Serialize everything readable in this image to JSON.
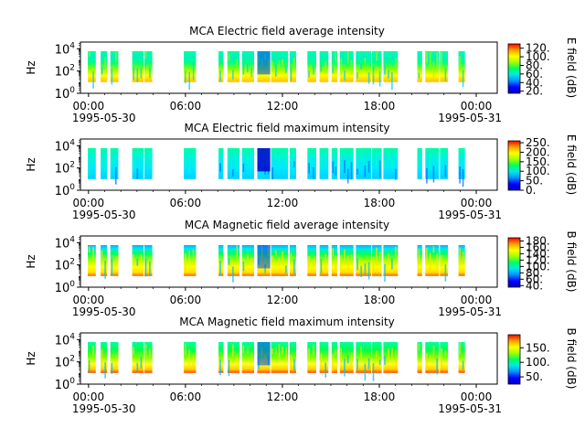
{
  "figure": {
    "date_start": "1995-05-30",
    "date_end": "1995-05-31"
  },
  "chart_data": [
    {
      "type": "heatmap",
      "title": "MCA  Electric field average intensity",
      "ylabel": "Hz",
      "colorbar_label": "E field (dB)",
      "x_unit": "hours",
      "xlim": [
        -0.5,
        25.3
      ],
      "x_ticks": [
        "00:00",
        "06:00",
        "12:00",
        "18:00",
        "00:00"
      ],
      "y_scale": "log",
      "y_ticks": [
        "10^0",
        "10^2",
        "10^4"
      ],
      "colorbar_range": [
        15,
        130
      ],
      "colorbar_ticks": [
        "20.",
        "40.",
        "60.",
        "80.",
        "100.",
        "120."
      ],
      "colormap": "rainbow",
      "data_intervals_hours": [
        [
          -0.05,
          0.45
        ],
        [
          0.75,
          1.15
        ],
        [
          1.35,
          1.85
        ],
        [
          2.7,
          3.4
        ],
        [
          3.45,
          3.95
        ],
        [
          5.9,
          6.65
        ],
        [
          8.05,
          8.35
        ],
        [
          8.6,
          9.35
        ],
        [
          9.5,
          10.25
        ],
        [
          10.45,
          11.25
        ],
        [
          11.3,
          12.35
        ],
        [
          12.45,
          12.85
        ],
        [
          13.55,
          14.1
        ],
        [
          14.3,
          14.85
        ],
        [
          15.05,
          15.4
        ],
        [
          15.55,
          16.4
        ],
        [
          16.55,
          17.5
        ],
        [
          17.55,
          18.15
        ],
        [
          18.25,
          19.15
        ],
        [
          20.35,
          20.65
        ],
        [
          20.85,
          21.7
        ],
        [
          21.75,
          22.25
        ],
        [
          22.9,
          23.3
        ]
      ]
    },
    {
      "type": "heatmap",
      "title": "MCA  Electric field maximum intensity",
      "ylabel": "Hz",
      "colorbar_label": "E field (dB)",
      "x_unit": "hours",
      "xlim": [
        -0.5,
        25.3
      ],
      "x_ticks": [
        "00:00",
        "06:00",
        "12:00",
        "18:00",
        "00:00"
      ],
      "y_scale": "log",
      "y_ticks": [
        "10^0",
        "10^2",
        "10^4"
      ],
      "colorbar_range": [
        0,
        260
      ],
      "colorbar_ticks": [
        "0.",
        "50.",
        "100.",
        "150.",
        "200.",
        "250."
      ],
      "colormap": "rainbow",
      "data_intervals_hours": [
        [
          -0.05,
          0.45
        ],
        [
          0.75,
          1.15
        ],
        [
          1.35,
          1.85
        ],
        [
          2.7,
          3.4
        ],
        [
          3.45,
          3.95
        ],
        [
          5.9,
          6.65
        ],
        [
          8.05,
          8.35
        ],
        [
          8.6,
          9.35
        ],
        [
          9.5,
          10.25
        ],
        [
          10.45,
          11.25
        ],
        [
          11.3,
          12.35
        ],
        [
          12.45,
          12.85
        ],
        [
          13.55,
          14.1
        ],
        [
          14.3,
          14.85
        ],
        [
          15.05,
          15.4
        ],
        [
          15.55,
          16.4
        ],
        [
          16.55,
          17.5
        ],
        [
          17.55,
          18.15
        ],
        [
          18.25,
          19.15
        ],
        [
          20.35,
          20.65
        ],
        [
          20.85,
          21.7
        ],
        [
          21.75,
          22.25
        ],
        [
          22.9,
          23.3
        ]
      ]
    },
    {
      "type": "heatmap",
      "title": "MCA  Magnetic field average intensity",
      "ylabel": "Hz",
      "colorbar_label": "B field (dB)",
      "x_unit": "hours",
      "xlim": [
        -0.5,
        25.3
      ],
      "x_ticks": [
        "00:00",
        "06:00",
        "12:00",
        "18:00",
        "00:00"
      ],
      "y_scale": "log",
      "y_ticks": [
        "10^0",
        "10^2",
        "10^4"
      ],
      "colorbar_range": [
        35,
        190
      ],
      "colorbar_ticks": [
        "40.",
        "60.",
        "80.",
        "100.",
        "120.",
        "140.",
        "160.",
        "180."
      ],
      "colormap": "rainbow",
      "data_intervals_hours": [
        [
          -0.05,
          0.45
        ],
        [
          0.75,
          1.15
        ],
        [
          1.35,
          1.85
        ],
        [
          2.7,
          3.4
        ],
        [
          3.45,
          3.95
        ],
        [
          5.9,
          6.65
        ],
        [
          8.05,
          8.35
        ],
        [
          8.6,
          9.35
        ],
        [
          9.5,
          10.25
        ],
        [
          10.45,
          11.25
        ],
        [
          11.3,
          12.35
        ],
        [
          12.45,
          12.85
        ],
        [
          13.55,
          14.1
        ],
        [
          14.3,
          14.85
        ],
        [
          15.05,
          15.4
        ],
        [
          15.55,
          16.4
        ],
        [
          16.55,
          17.5
        ],
        [
          17.55,
          18.15
        ],
        [
          18.25,
          19.15
        ],
        [
          20.35,
          20.65
        ],
        [
          20.85,
          21.7
        ],
        [
          21.75,
          22.25
        ],
        [
          22.9,
          23.3
        ]
      ]
    },
    {
      "type": "heatmap",
      "title": "MCA  Magnetic field maximum intensity",
      "ylabel": "Hz",
      "colorbar_label": "B field (dB)",
      "x_unit": "hours",
      "xlim": [
        -0.5,
        25.3
      ],
      "x_ticks": [
        "00:00",
        "06:00",
        "12:00",
        "18:00",
        "00:00"
      ],
      "y_scale": "log",
      "y_ticks": [
        "10^0",
        "10^2",
        "10^4"
      ],
      "colorbar_range": [
        25,
        195
      ],
      "colorbar_ticks": [
        "50.",
        "100.",
        "150."
      ],
      "colormap": "rainbow",
      "data_intervals_hours": [
        [
          -0.05,
          0.45
        ],
        [
          0.75,
          1.15
        ],
        [
          1.35,
          1.85
        ],
        [
          2.7,
          3.4
        ],
        [
          3.45,
          3.95
        ],
        [
          5.9,
          6.65
        ],
        [
          8.05,
          8.35
        ],
        [
          8.6,
          9.35
        ],
        [
          9.5,
          10.25
        ],
        [
          10.45,
          11.25
        ],
        [
          11.3,
          12.35
        ],
        [
          12.45,
          12.85
        ],
        [
          13.55,
          14.1
        ],
        [
          14.3,
          14.85
        ],
        [
          15.05,
          15.4
        ],
        [
          15.55,
          16.4
        ],
        [
          16.55,
          17.5
        ],
        [
          17.55,
          18.15
        ],
        [
          18.25,
          19.15
        ],
        [
          20.35,
          20.65
        ],
        [
          20.85,
          21.7
        ],
        [
          21.75,
          22.25
        ],
        [
          22.9,
          23.3
        ]
      ]
    }
  ]
}
